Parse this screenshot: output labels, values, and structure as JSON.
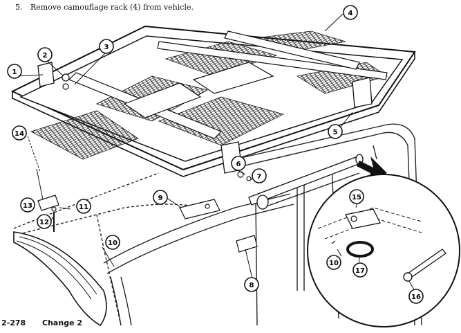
{
  "step": {
    "number": "5.",
    "text": "Remove camouflage rack (4) from vehicle."
  },
  "footer": {
    "page": "2-278",
    "change": "Change 2"
  },
  "callouts": [
    "1",
    "2",
    "3",
    "4",
    "5",
    "6",
    "7",
    "8",
    "9",
    "10",
    "11",
    "12",
    "13",
    "14",
    "15",
    "16",
    "17",
    "10"
  ],
  "colors": {
    "ink": "#1a1a1a",
    "paper": "#ffffff"
  }
}
